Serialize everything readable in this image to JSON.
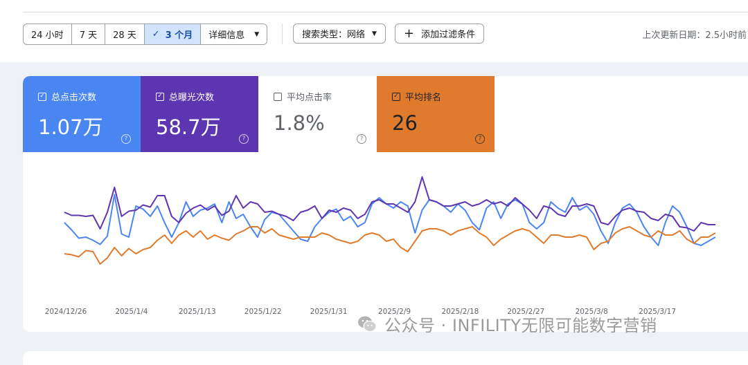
{
  "toolbar": {
    "ranges": [
      {
        "label": "24 小时",
        "active": false
      },
      {
        "label": "7 天",
        "active": false
      },
      {
        "label": "28 天",
        "active": false
      },
      {
        "label": "3 个月",
        "active": true
      }
    ],
    "details_label": "详细信息",
    "search_type_label": "搜索类型：网络",
    "add_filter_label": "添加过滤条件",
    "updated_text": "上次更新日期：2.5小时前"
  },
  "metrics": [
    {
      "label": "总点击次数",
      "value": "1.07万",
      "checked": true,
      "color": "#4a86f1"
    },
    {
      "label": "总曝光次数",
      "value": "58.7万",
      "checked": true,
      "color": "#5e35b1"
    },
    {
      "label": "平均点击率",
      "value": "1.8%",
      "checked": false,
      "color": "#ffffff"
    },
    {
      "label": "平均排名",
      "value": "26",
      "checked": true,
      "color": "#e07b2e"
    }
  ],
  "chart_data": {
    "type": "line",
    "x_tick_labels": [
      "2024/12/26",
      "2025/1/4",
      "2025/1/13",
      "2025/1/22",
      "2025/1/31",
      "2025/2/9",
      "2025/2/18",
      "2025/2/27",
      "2025/3/8",
      "2025/3/17"
    ],
    "axes_values_shown": false,
    "series": [
      {
        "name": "总点击次数",
        "color": "#4a86f1",
        "values": [
          0.52,
          0.45,
          0.37,
          0.38,
          0.35,
          0.31,
          0.39,
          0.79,
          0.41,
          0.38,
          0.68,
          0.65,
          0.58,
          0.68,
          0.52,
          0.38,
          0.52,
          0.72,
          0.58,
          0.64,
          0.66,
          0.7,
          0.52,
          0.72,
          0.56,
          0.6,
          0.48,
          0.38,
          0.55,
          0.62,
          0.6,
          0.52,
          0.44,
          0.36,
          0.34,
          0.48,
          0.56,
          0.62,
          0.65,
          0.54,
          0.58,
          0.48,
          0.52,
          0.7,
          0.76,
          0.7,
          0.66,
          0.72,
          0.68,
          0.42,
          0.64,
          0.74,
          0.72,
          0.68,
          0.62,
          0.7,
          0.64,
          0.52,
          0.45,
          0.66,
          0.72,
          0.56,
          0.7,
          0.74,
          0.7,
          0.52,
          0.46,
          0.52,
          0.72,
          0.66,
          0.62,
          0.76,
          0.64,
          0.68,
          0.6,
          0.44,
          0.32,
          0.52,
          0.66,
          0.7,
          0.62,
          0.48,
          0.38,
          0.3,
          0.52,
          0.68,
          0.62,
          0.48,
          0.32,
          0.3,
          0.34,
          0.38
        ]
      },
      {
        "name": "总曝光次数",
        "color": "#5e35b1",
        "values": [
          0.62,
          0.59,
          0.59,
          0.58,
          0.59,
          0.46,
          0.62,
          0.86,
          0.58,
          0.63,
          0.64,
          0.69,
          0.67,
          0.78,
          0.78,
          0.58,
          0.52,
          0.61,
          0.66,
          0.69,
          0.64,
          0.68,
          0.59,
          0.63,
          0.78,
          0.66,
          0.72,
          0.7,
          0.62,
          0.63,
          0.6,
          0.58,
          0.54,
          0.62,
          0.64,
          0.68,
          0.56,
          0.64,
          0.62,
          0.66,
          0.64,
          0.56,
          0.6,
          0.72,
          0.74,
          0.7,
          0.7,
          0.66,
          0.62,
          0.72,
          0.96,
          0.74,
          0.72,
          0.68,
          0.68,
          0.7,
          0.72,
          0.68,
          0.7,
          0.74,
          0.7,
          0.72,
          0.68,
          0.76,
          0.7,
          0.64,
          0.56,
          0.68,
          0.66,
          0.6,
          0.58,
          0.68,
          0.68,
          0.7,
          0.68,
          0.52,
          0.5,
          0.58,
          0.64,
          0.66,
          0.63,
          0.62,
          0.56,
          0.54,
          0.6,
          0.58,
          0.48,
          0.47,
          0.44,
          0.52,
          0.5,
          0.5
        ]
      },
      {
        "name": "平均排名",
        "color": "#e07b2e",
        "values": [
          0.22,
          0.21,
          0.19,
          0.25,
          0.24,
          0.12,
          0.18,
          0.28,
          0.2,
          0.27,
          0.22,
          0.26,
          0.28,
          0.35,
          0.4,
          0.32,
          0.4,
          0.44,
          0.38,
          0.44,
          0.36,
          0.4,
          0.37,
          0.35,
          0.41,
          0.44,
          0.48,
          0.48,
          0.42,
          0.46,
          0.4,
          0.38,
          0.36,
          0.38,
          0.38,
          0.38,
          0.42,
          0.4,
          0.36,
          0.34,
          0.32,
          0.34,
          0.4,
          0.42,
          0.4,
          0.34,
          0.36,
          0.28,
          0.24,
          0.34,
          0.44,
          0.46,
          0.46,
          0.44,
          0.4,
          0.44,
          0.46,
          0.48,
          0.42,
          0.38,
          0.3,
          0.36,
          0.4,
          0.44,
          0.46,
          0.44,
          0.38,
          0.32,
          0.4,
          0.4,
          0.38,
          0.38,
          0.4,
          0.38,
          0.26,
          0.32,
          0.34,
          0.42,
          0.46,
          0.48,
          0.44,
          0.4,
          0.38,
          0.44,
          0.4,
          0.4,
          0.44,
          0.36,
          0.32,
          0.38,
          0.38,
          0.42
        ]
      }
    ]
  },
  "watermark": {
    "text": "公众号 · INFILITY无限可能数字营销",
    "icon": "wechat-logo-icon"
  }
}
